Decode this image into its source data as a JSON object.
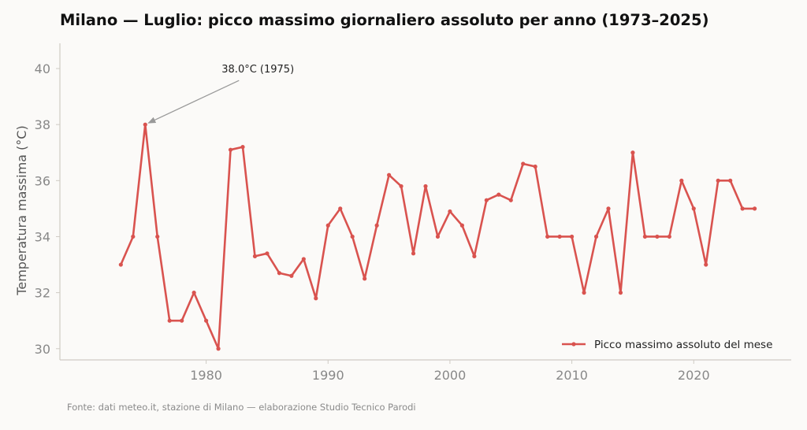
{
  "colors": {
    "background": "#fbfaf8",
    "series": "#d9534f",
    "axis": "#cfcbc4",
    "tick_text": "#888888",
    "annotation_arrow": "#999999"
  },
  "source_note": "Fonte: dati meteo.it, stazione di Milano — elaborazione Studio Tecnico Parodi",
  "chart_data": {
    "type": "line",
    "title": "Milano — Luglio: picco massimo giornaliero assoluto per anno (1973–2025)",
    "xlabel": "",
    "ylabel": "Temperatura massima (°C)",
    "xlim": [
      1968,
      2028
    ],
    "ylim": [
      29.6,
      40.9
    ],
    "xticks": [
      1980,
      1990,
      2000,
      2010,
      2020
    ],
    "yticks": [
      30,
      32,
      34,
      36,
      38,
      40
    ],
    "grid": false,
    "legend_position": "bottom-right",
    "x": [
      1973,
      1974,
      1975,
      1976,
      1977,
      1978,
      1979,
      1980,
      1981,
      1982,
      1983,
      1984,
      1985,
      1986,
      1987,
      1988,
      1989,
      1990,
      1991,
      1992,
      1993,
      1994,
      1995,
      1996,
      1997,
      1998,
      1999,
      2000,
      2001,
      2002,
      2003,
      2004,
      2005,
      2006,
      2007,
      2008,
      2009,
      2010,
      2011,
      2012,
      2013,
      2014,
      2015,
      2016,
      2017,
      2018,
      2019,
      2020,
      2021,
      2022,
      2023,
      2024,
      2025
    ],
    "series": [
      {
        "name": "Picco massimo assoluto del mese",
        "values": [
          33.0,
          34.0,
          38.0,
          34.0,
          31.0,
          31.0,
          32.0,
          31.0,
          30.0,
          37.1,
          37.2,
          33.3,
          33.4,
          32.7,
          32.6,
          33.2,
          31.8,
          34.4,
          35.0,
          34.0,
          32.5,
          34.4,
          36.2,
          35.8,
          33.4,
          35.8,
          34.0,
          34.9,
          34.4,
          33.3,
          35.3,
          35.5,
          35.3,
          36.6,
          36.5,
          34.0,
          34.0,
          34.0,
          32.0,
          34.0,
          35.0,
          32.0,
          37.0,
          34.0,
          34.0,
          34.0,
          36.0,
          35.0,
          33.0,
          36.0,
          36.0,
          35.0,
          35.0
        ]
      }
    ],
    "annotations": [
      {
        "text": "38.0°C (1975)",
        "x": 1975,
        "y": 38.0
      }
    ]
  }
}
